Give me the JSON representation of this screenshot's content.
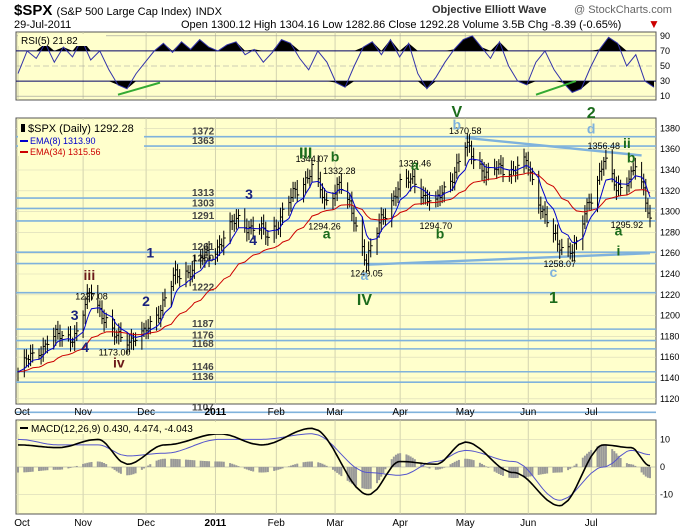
{
  "header": {
    "symbol": "$SPX",
    "name": "(S&P 500 Large Cap Index)",
    "exchange": "INDX",
    "source": "Objective Elliott Wave",
    "credit": "@ StockCharts.com",
    "date": "29-Jul-2011",
    "quote": "Open 1300.12  High 1304.16  Low 1282.86  Close 1292.28  Volume 3.5B  Chg -8.39 (-0.65%)"
  },
  "rsi": {
    "label": "RSI(5) 21.82",
    "levels": [
      90,
      70,
      50,
      30,
      10
    ],
    "ylim": [
      5,
      95
    ]
  },
  "price_panel": {
    "legend_price": "$SPX (Daily) 1292.28",
    "legend_ema8": "EMA(8) 1313.90",
    "legend_ema34": "EMA(34) 1315.56",
    "ylim": [
      1115,
      1390
    ],
    "ticks": [
      1380,
      1360,
      1340,
      1320,
      1300,
      1280,
      1260,
      1240,
      1220,
      1200,
      1180,
      1160,
      1140,
      1120
    ],
    "colors": {
      "price": "#000000",
      "ema8": "#0000cc",
      "ema34": "#cc0000",
      "hline": "#7fb2dc"
    }
  },
  "months": [
    "Oct",
    "Nov",
    "Dec",
    "2011",
    "Feb",
    "Mar",
    "Apr",
    "May",
    "Jun",
    "Jul"
  ],
  "chart_data": {
    "type": "ohlc",
    "title": "$SPX (S&P 500 Large Cap Index) INDX",
    "x_range": [
      "2010-10-01",
      "2011-07-29"
    ],
    "close_key_points": [
      {
        "date": "2010-10-01",
        "close": 1146
      },
      {
        "date": "2010-10-15",
        "close": 1176
      },
      {
        "date": "2010-10-29",
        "close": 1183
      },
      {
        "date": "2010-11-05",
        "close": 1225
      },
      {
        "date": "2010-11-16",
        "close": 1178
      },
      {
        "date": "2010-11-30",
        "close": 1180
      },
      {
        "date": "2010-12-15",
        "close": 1236
      },
      {
        "date": "2010-12-31",
        "close": 1258
      },
      {
        "date": "2011-01-14",
        "close": 1293
      },
      {
        "date": "2011-01-28",
        "close": 1276
      },
      {
        "date": "2011-02-18",
        "close": 1343
      },
      {
        "date": "2011-02-24",
        "close": 1306
      },
      {
        "date": "2011-03-03",
        "close": 1330
      },
      {
        "date": "2011-03-16",
        "close": 1256
      },
      {
        "date": "2011-03-31",
        "close": 1326
      },
      {
        "date": "2011-04-08",
        "close": 1328
      },
      {
        "date": "2011-04-18",
        "close": 1305
      },
      {
        "date": "2011-05-02",
        "close": 1361
      },
      {
        "date": "2011-05-13",
        "close": 1337
      },
      {
        "date": "2011-05-31",
        "close": 1345
      },
      {
        "date": "2011-06-15",
        "close": 1265
      },
      {
        "date": "2011-06-24",
        "close": 1268
      },
      {
        "date": "2011-07-07",
        "close": 1353
      },
      {
        "date": "2011-07-13",
        "close": 1318
      },
      {
        "date": "2011-07-22",
        "close": 1345
      },
      {
        "date": "2011-07-29",
        "close": 1292
      }
    ],
    "horizontal_levels": [
      1372,
      1363,
      1313,
      1303,
      1291,
      1261,
      1250,
      1222,
      1187,
      1176,
      1168,
      1146,
      1136,
      1107
    ],
    "price_labels": [
      {
        "date": "2010-11-05",
        "price": 1227.08,
        "text": "1227.08"
      },
      {
        "date": "2010-11-16",
        "price": 1173.0,
        "text": "1173.00"
      },
      {
        "date": "2011-02-18",
        "price": 1344.07,
        "text": "1344.07"
      },
      {
        "date": "2011-03-03",
        "price": 1332.28,
        "text": "1332.28"
      },
      {
        "date": "2011-02-24",
        "price": 1294.26,
        "text": "1294.26"
      },
      {
        "date": "2011-03-16",
        "price": 1249.05,
        "text": "1249.05"
      },
      {
        "date": "2011-04-08",
        "price": 1339.46,
        "text": "1339.46"
      },
      {
        "date": "2011-04-18",
        "price": 1294.7,
        "text": "1294.70"
      },
      {
        "date": "2011-05-02",
        "price": 1370.58,
        "text": "1370.58"
      },
      {
        "date": "2011-06-16",
        "price": 1258.07,
        "text": "1258.07"
      },
      {
        "date": "2011-07-07",
        "price": 1356.48,
        "text": "1356.48"
      },
      {
        "date": "2011-07-18",
        "price": 1295.92,
        "text": "1295.92"
      }
    ],
    "wave_labels": [
      {
        "text": "3",
        "color": "#1a237e",
        "date": "2010-10-28",
        "price": 1196
      },
      {
        "text": "4",
        "color": "#1a237e",
        "date": "2010-11-02",
        "price": 1165
      },
      {
        "text": "iii",
        "color": "#6b1a1a",
        "date": "2010-11-04",
        "price": 1234
      },
      {
        "text": "iv",
        "color": "#6b1a1a",
        "date": "2010-11-18",
        "price": 1150
      },
      {
        "text": "1",
        "color": "#1a237e",
        "date": "2010-12-03",
        "price": 1256
      },
      {
        "text": "2",
        "color": "#1a237e",
        "date": "2010-12-01",
        "price": 1209
      },
      {
        "text": "3",
        "color": "#1a237e",
        "date": "2011-01-19",
        "price": 1312
      },
      {
        "text": "4",
        "color": "#1a237e",
        "date": "2011-01-21",
        "price": 1268
      },
      {
        "text": "III",
        "color": "#1b6b1b",
        "date": "2011-02-15",
        "price": 1351
      },
      {
        "text": "b",
        "color": "#1b6b1b",
        "date": "2011-03-01",
        "price": 1348
      },
      {
        "text": "a",
        "color": "#1b6b1b",
        "date": "2011-02-25",
        "price": 1274
      },
      {
        "text": "a",
        "color": "#7fb2dc",
        "date": "2011-03-15",
        "price": 1234
      },
      {
        "text": "IV",
        "color": "#1b6b1b",
        "date": "2011-03-15",
        "price": 1210
      },
      {
        "text": "a",
        "color": "#1b6b1b",
        "date": "2011-04-08",
        "price": 1340
      },
      {
        "text": "b",
        "color": "#1b6b1b",
        "date": "2011-04-20",
        "price": 1274
      },
      {
        "text": "V",
        "color": "#1b6b1b",
        "date": "2011-04-28",
        "price": 1391
      },
      {
        "text": "b",
        "color": "#7fb2dc",
        "date": "2011-04-28",
        "price": 1379
      },
      {
        "text": "c",
        "color": "#7fb2dc",
        "date": "2011-06-13",
        "price": 1237
      },
      {
        "text": "1",
        "color": "#1b6b1b",
        "date": "2011-06-13",
        "price": 1212
      },
      {
        "text": "2",
        "color": "#1b6b1b",
        "date": "2011-07-01",
        "price": 1390
      },
      {
        "text": "d",
        "color": "#7fb2dc",
        "date": "2011-07-01",
        "price": 1375
      },
      {
        "text": "ii",
        "color": "#1b6b1b",
        "date": "2011-07-18",
        "price": 1361
      },
      {
        "text": "b",
        "color": "#1b6b1b",
        "date": "2011-07-20",
        "price": 1347
      },
      {
        "text": "a",
        "color": "#1b6b1b",
        "date": "2011-07-14",
        "price": 1277
      },
      {
        "text": "i",
        "color": "#1b6b1b",
        "date": "2011-07-14",
        "price": 1258
      }
    ],
    "trendlines": [
      {
        "from": {
          "date": "2011-05-02",
          "price": 1371
        },
        "to": {
          "date": "2011-07-25",
          "price": 1354
        }
      },
      {
        "from": {
          "date": "2011-03-16",
          "price": 1249
        },
        "to": {
          "date": "2011-07-29",
          "price": 1260
        }
      }
    ],
    "rsi_points": [
      40,
      70,
      60,
      80,
      55,
      75,
      62,
      85,
      58,
      70,
      45,
      25,
      20,
      40,
      55,
      70,
      80,
      68,
      82,
      72,
      85,
      75,
      70,
      78,
      82,
      65,
      72,
      55,
      68,
      85,
      80,
      60,
      45,
      70,
      55,
      28,
      22,
      50,
      75,
      82,
      65,
      85,
      62,
      80,
      40,
      20,
      35,
      55,
      72,
      85,
      90,
      75,
      60,
      82,
      50,
      30,
      25,
      55,
      70,
      45,
      28,
      15,
      20,
      48,
      72,
      88,
      80,
      50,
      65,
      30,
      22
    ],
    "macd_label": "MACD(12,26,9) 0.430, 4.474, -4.043",
    "macd_key_points": [
      {
        "date": "2010-10-01",
        "macd": 8,
        "signal": 10
      },
      {
        "date": "2010-10-20",
        "macd": 7,
        "signal": 8
      },
      {
        "date": "2010-11-08",
        "macd": 10,
        "signal": 8
      },
      {
        "date": "2010-11-22",
        "macd": 1,
        "signal": 4
      },
      {
        "date": "2010-12-10",
        "macd": 8,
        "signal": 5
      },
      {
        "date": "2011-01-05",
        "macd": 12,
        "signal": 10
      },
      {
        "date": "2011-01-25",
        "macd": 8,
        "signal": 10
      },
      {
        "date": "2011-02-18",
        "macd": 14,
        "signal": 12
      },
      {
        "date": "2011-03-17",
        "macd": -10,
        "signal": -2
      },
      {
        "date": "2011-04-01",
        "macd": 2,
        "signal": -3
      },
      {
        "date": "2011-04-18",
        "macd": 1,
        "signal": 2
      },
      {
        "date": "2011-05-02",
        "macd": 9,
        "signal": 6
      },
      {
        "date": "2011-05-25",
        "macd": -2,
        "signal": 2
      },
      {
        "date": "2011-06-16",
        "macd": -14,
        "signal": -12
      },
      {
        "date": "2011-07-07",
        "macd": 8,
        "signal": 0
      },
      {
        "date": "2011-07-20",
        "macd": 7,
        "signal": 6
      },
      {
        "date": "2011-07-29",
        "macd": 0.43,
        "signal": 4.47
      }
    ],
    "macd_ticks": [
      10,
      0,
      -10
    ]
  }
}
